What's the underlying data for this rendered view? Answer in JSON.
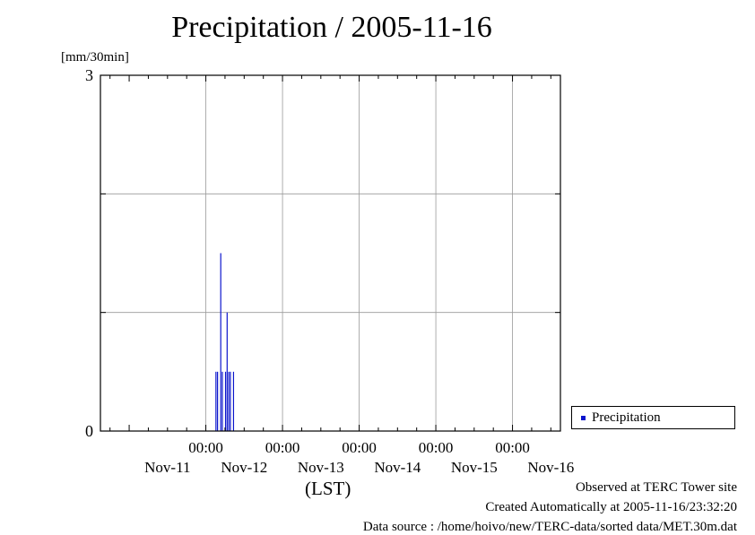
{
  "chart_data": {
    "type": "bar",
    "title": "Precipitation / 2005-11-16",
    "ylabel": "[mm/30min]",
    "xlabel": "(LST)",
    "x_unit": "hours since 2005-11-11 00:00 LST",
    "xlim": [
      -9,
      135
    ],
    "ylim": [
      0,
      3
    ],
    "y_ticks": [
      0,
      3
    ],
    "y_gridlines": [
      1,
      2
    ],
    "grid": true,
    "x_tick_time": [
      "00:00",
      "00:00",
      "00:00",
      "00:00",
      "00:00"
    ],
    "x_tick_positions": [
      24,
      48,
      72,
      96,
      120
    ],
    "x_date_labels": [
      "Nov-11",
      "Nov-12",
      "Nov-13",
      "Nov-14",
      "Nov-15",
      "Nov-16"
    ],
    "x_date_positions": [
      12,
      36,
      60,
      84,
      108,
      132
    ],
    "legend_position": "bottom-right-outside",
    "series": [
      {
        "name": "Precipitation",
        "color": "#0a14cc",
        "bar_width_hours": 0.5,
        "points": [
          {
            "x": 27.0,
            "y": 0.5
          },
          {
            "x": 27.5,
            "y": 0.5
          },
          {
            "x": 28.5,
            "y": 1.5
          },
          {
            "x": 29.0,
            "y": 0.5
          },
          {
            "x": 30.0,
            "y": 0.5
          },
          {
            "x": 30.5,
            "y": 1.0
          },
          {
            "x": 31.0,
            "y": 0.5
          },
          {
            "x": 31.5,
            "y": 0.5
          },
          {
            "x": 32.5,
            "y": 0.5
          }
        ]
      }
    ]
  },
  "footer": {
    "observed": "Observed at TERC Tower site",
    "created": "Created Automatically at 2005-11-16/23:32:20",
    "source": "Data source : /home/hoivo/new/TERC-data/sorted  data/MET.30m.dat"
  }
}
